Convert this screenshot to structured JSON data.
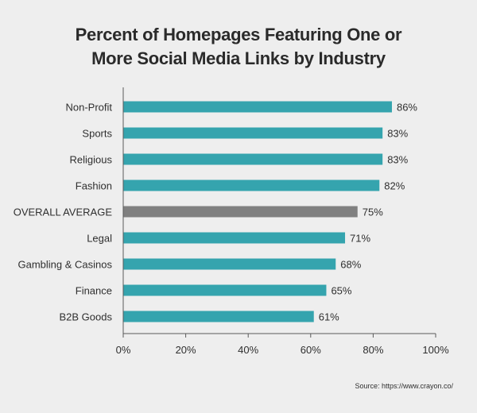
{
  "title_lines": [
    "Percent of Homepages Featuring One or",
    "More Social Media Links by Industry"
  ],
  "source": "Source: https://www.crayon.co/",
  "colors": {
    "bar": "#35a4ae",
    "highlight_bar": "#808080",
    "axis": "#5a5a5a",
    "background": "#eeeeee"
  },
  "chart_data": {
    "type": "bar",
    "orientation": "horizontal",
    "title": "Percent of Homepages Featuring One or More Social Media Links by Industry",
    "categories": [
      "Non-Profit",
      "Sports",
      "Religious",
      "Fashion",
      "OVERALL AVERAGE",
      "Legal",
      "Gambling & Casinos",
      "Finance",
      "B2B Goods"
    ],
    "values": [
      86,
      83,
      83,
      82,
      75,
      71,
      68,
      65,
      61
    ],
    "value_labels": [
      "86%",
      "83%",
      "83%",
      "82%",
      "75%",
      "71%",
      "68%",
      "65%",
      "61%"
    ],
    "highlight_category": "OVERALL AVERAGE",
    "xlim": [
      0,
      100
    ],
    "x_ticks": [
      0,
      20,
      40,
      60,
      80,
      100
    ],
    "x_tick_labels": [
      "0%",
      "20%",
      "40%",
      "60%",
      "80%",
      "100%"
    ],
    "grid": false,
    "legend": "none"
  }
}
